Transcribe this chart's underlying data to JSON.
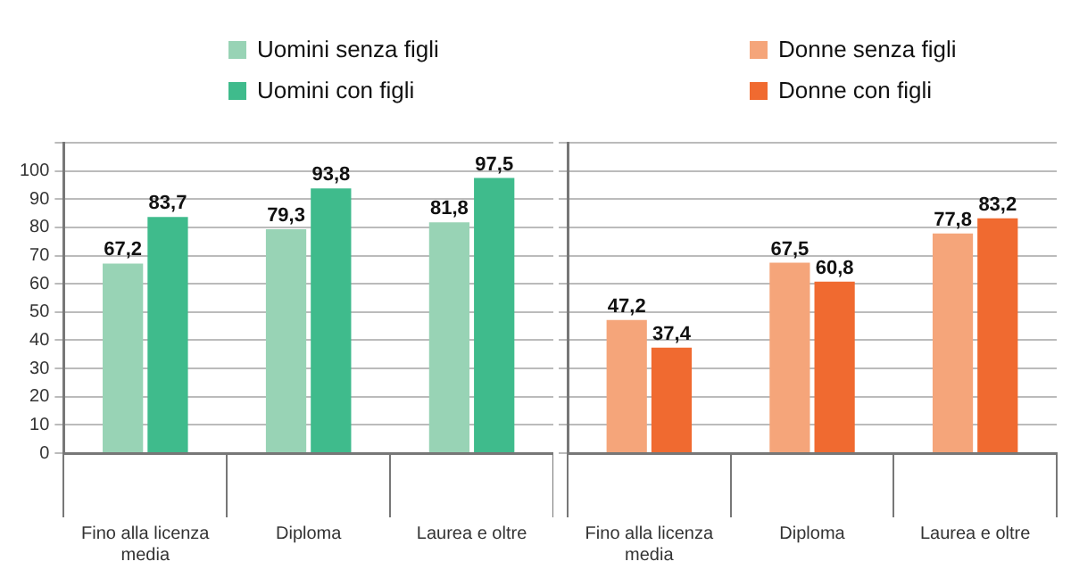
{
  "chart_data": [
    {
      "type": "bar",
      "categories": [
        "Fino alla licenza media",
        "Diploma",
        "Laurea e oltre"
      ],
      "series": [
        {
          "name": "Uomini senza figli",
          "color": "#98d3b5",
          "values": [
            67.2,
            79.3,
            81.8
          ],
          "value_labels": [
            "67,2",
            "79,3",
            "81,8"
          ]
        },
        {
          "name": "Uomini con figli",
          "color": "#3fbb8c",
          "values": [
            83.7,
            93.8,
            97.5
          ],
          "value_labels": [
            "83,7",
            "93,8",
            "97,5"
          ]
        }
      ],
      "ylim": [
        0,
        110
      ],
      "yticks": [
        0,
        10,
        20,
        30,
        40,
        50,
        60,
        70,
        80,
        90,
        100,
        {
          "value": 110,
          "label": null
        }
      ],
      "grid": "y",
      "legend": "top"
    },
    {
      "type": "bar",
      "categories": [
        "Fino alla licenza media",
        "Diploma",
        "Laurea e oltre"
      ],
      "series": [
        {
          "name": "Donne senza figli",
          "color": "#f5a57a",
          "values": [
            47.2,
            67.5,
            77.8
          ],
          "value_labels": [
            "47,2",
            "67,5",
            "77,8"
          ]
        },
        {
          "name": "Donne con figli",
          "color": "#f06a30",
          "values": [
            37.4,
            60.8,
            83.2
          ],
          "value_labels": [
            "37,4",
            "60,8",
            "83,2"
          ]
        }
      ],
      "ylim": [
        0,
        110
      ],
      "yticks": [
        0,
        10,
        20,
        30,
        40,
        50,
        60,
        70,
        80,
        90,
        100,
        {
          "value": 110,
          "label": null
        }
      ],
      "grid": "y",
      "legend": "top",
      "tick_labels": "x"
    }
  ]
}
